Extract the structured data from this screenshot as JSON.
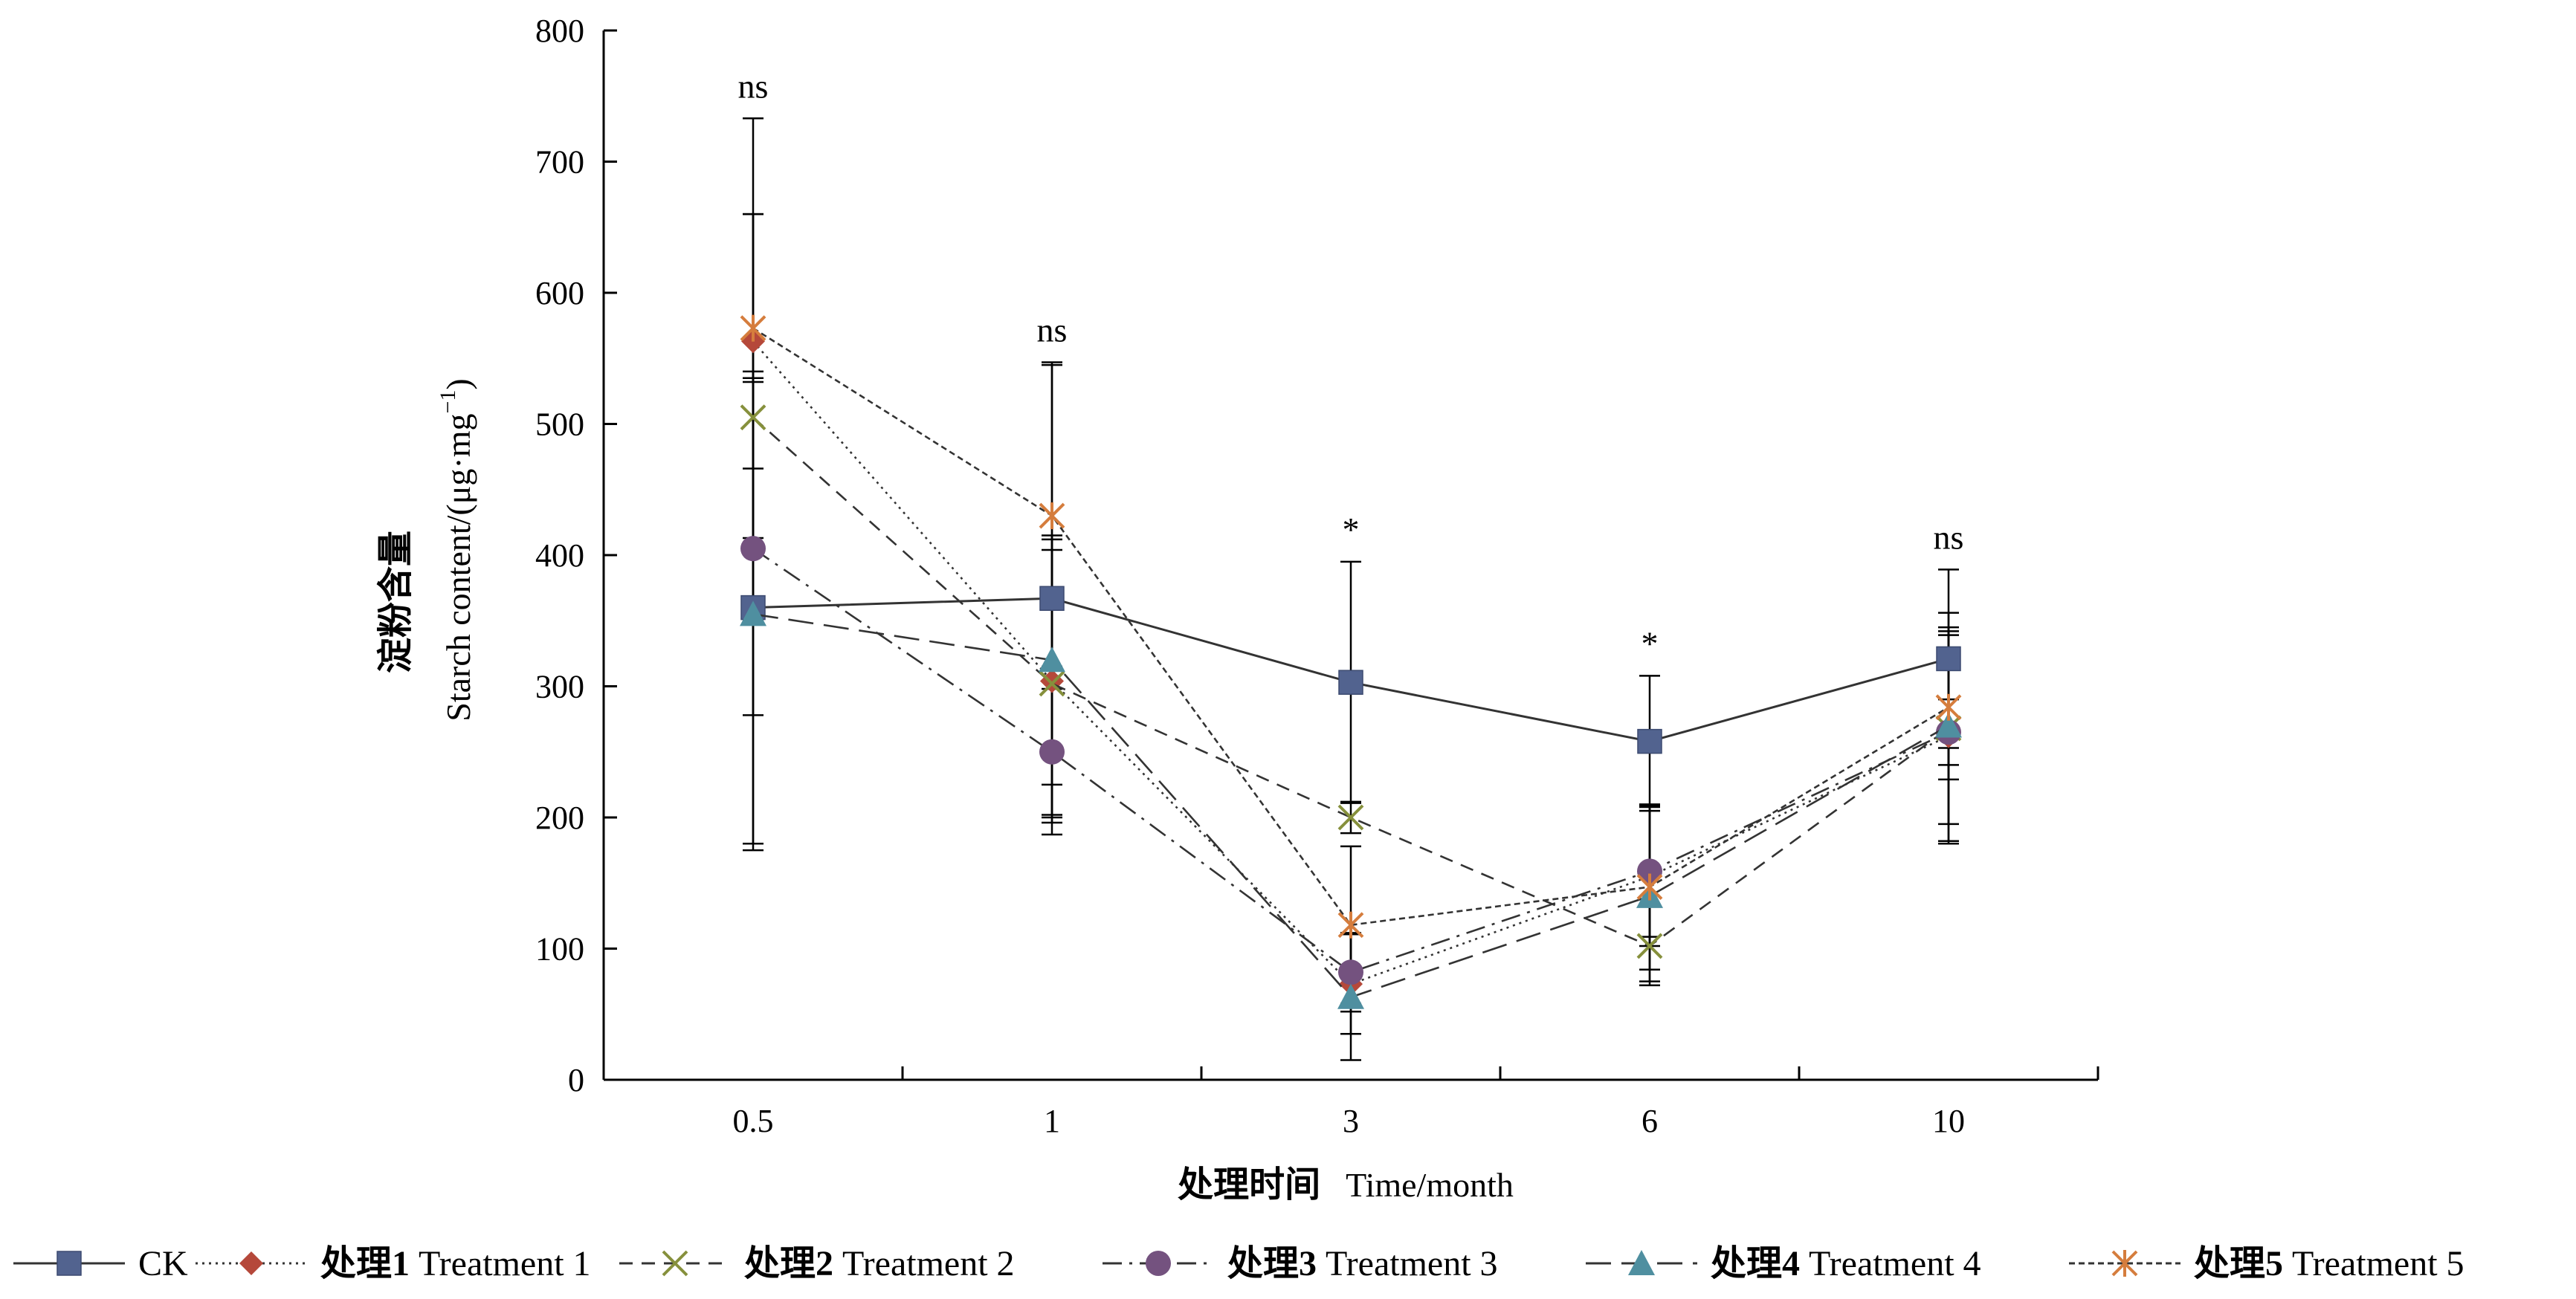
{
  "chart_data": {
    "type": "line",
    "x_title_cn": "处理时间",
    "x_title_en": "Time/month",
    "y_title_cn": "淀粉含量",
    "y_title_en_main": "Starch content/(μg·mg",
    "y_title_en_sup": "−1",
    "y_title_en_end": ")",
    "ylim": [
      0,
      800
    ],
    "yticks": [
      0,
      100,
      200,
      300,
      400,
      500,
      600,
      700,
      800
    ],
    "categories": [
      "0.5",
      "1",
      "3",
      "6",
      "10"
    ],
    "annotations": [
      "ns",
      "ns",
      "*",
      "*",
      "ns"
    ],
    "grid": false,
    "legend_position": "bottom",
    "series": [
      {
        "name": "CK",
        "label_cn": "",
        "label_en": "CK",
        "color": "#52638f",
        "marker": "square",
        "dash": "",
        "values": [
          360,
          367,
          303,
          258,
          321
        ],
        "err": [
          180,
          180,
          92,
          50,
          68
        ]
      },
      {
        "name": "处理1 Treatment 1",
        "label_cn": "处理1",
        "label_en": " Treatment 1",
        "color": "#b5483a",
        "marker": "diamond",
        "dash": "3,6",
        "values": [
          563,
          304,
          73,
          155,
          262
        ],
        "err": [
          97,
          108,
          38,
          53,
          80
        ]
      },
      {
        "name": "处理2 Treatment 2",
        "label_cn": "处理2",
        "label_en": " Treatment 2",
        "color": "#86903c",
        "marker": "x",
        "dash": "18,12",
        "values": [
          505,
          302,
          200,
          102,
          268
        ],
        "err": [
          155,
          102,
          12,
          30,
          88
        ]
      },
      {
        "name": "处理3 Treatment 3",
        "label_cn": "处理3",
        "label_en": " Treatment 3",
        "color": "#74527f",
        "marker": "circle",
        "dash": "26,10,4,10",
        "values": [
          405,
          250,
          82,
          159,
          265
        ],
        "err": [
          127,
          48,
          30,
          50,
          25
        ]
      },
      {
        "name": "处理4 Treatment 4",
        "label_cn": "处理4",
        "label_en": " Treatment 4",
        "color": "#4f8fa0",
        "marker": "triangle",
        "dash": "34,14",
        "values": [
          355,
          320,
          63,
          140,
          270
        ],
        "err": [
          180,
          95,
          48,
          65,
          75
        ]
      },
      {
        "name": "处理5 Treatment 5",
        "label_cn": "处理5",
        "label_en": " Treatment 5",
        "color": "#d57d3d",
        "marker": "asterisk",
        "dash": "8,5",
        "values": [
          573,
          430,
          118,
          147,
          284
        ],
        "err": [
          160,
          115,
          60,
          63,
          55
        ]
      }
    ]
  }
}
